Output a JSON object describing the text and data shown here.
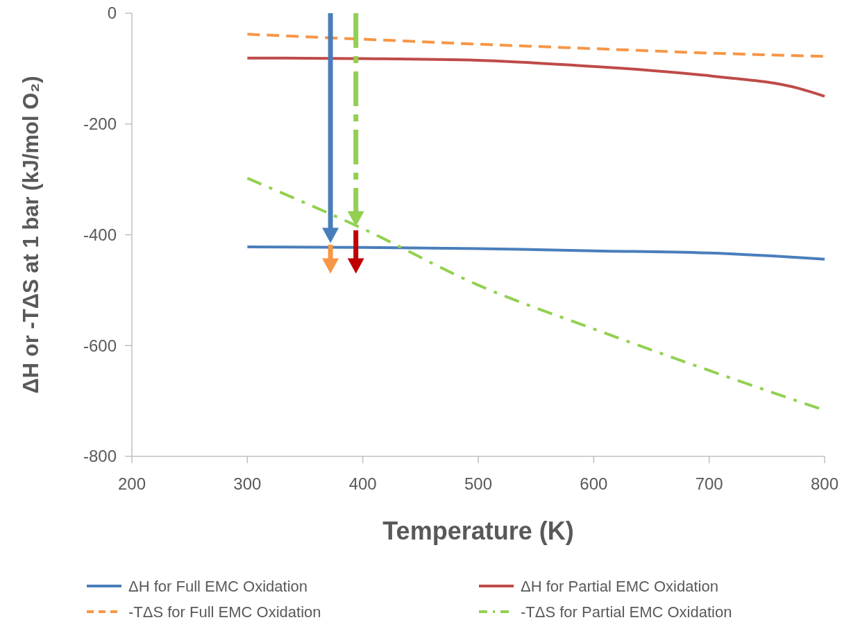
{
  "chart_data": {
    "type": "line",
    "xlabel": "Temperature (K)",
    "ylabel": "ΔH or -TΔS at 1 bar (kJ/mol O₂)",
    "xlim": [
      200,
      800
    ],
    "xticks": [
      200,
      300,
      400,
      500,
      600,
      700,
      800
    ],
    "ylim": [
      -800,
      0
    ],
    "yticks": [
      -800,
      -600,
      -400,
      -200,
      0
    ],
    "grid": false,
    "legend": "bottom",
    "marker": "none",
    "series": [
      {
        "name": "ΔH for Full EMC Oxidation",
        "color": "#4a7ebb",
        "line_style": "solid",
        "x": [
          300,
          400,
          500,
          600,
          700,
          800
        ],
        "values": [
          -422,
          -423,
          -425,
          -429,
          -433,
          -444
        ]
      },
      {
        "name": "ΔH for Partial EMC Oxidation",
        "color": "#be4b48",
        "line_style": "solid",
        "x": [
          300,
          400,
          500,
          575,
          700,
          778,
          800
        ],
        "values": [
          -81,
          -82,
          -85,
          -93,
          -113,
          -136,
          -150
        ]
      },
      {
        "name": "-TΔS for Full EMC Oxidation",
        "color": "#f79646",
        "line_style": "dashed",
        "x": [
          300,
          400,
          500,
          600,
          700,
          800
        ],
        "values": [
          -38,
          -47,
          -56,
          -64,
          -72,
          -78
        ]
      },
      {
        "name": "-TΔS for Partial EMC Oxidation",
        "color": "#92d050",
        "line_style": "dashdot",
        "x": [
          300,
          400,
          500,
          600,
          700,
          800
        ],
        "values": [
          -298,
          -389,
          -491,
          -570,
          -645,
          -717
        ]
      }
    ]
  }
}
